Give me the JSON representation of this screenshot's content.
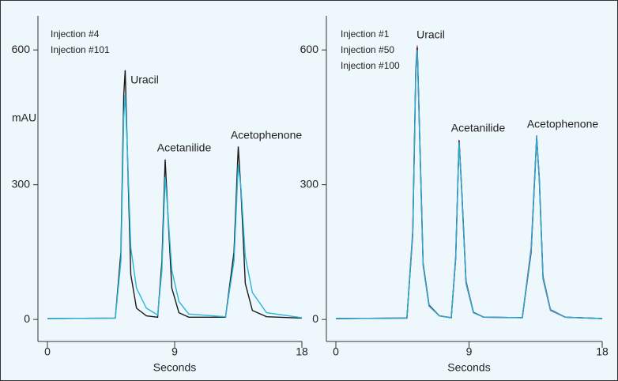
{
  "chart_data": [
    {
      "type": "line",
      "ylabel": "mAU",
      "xlabel": "Seconds",
      "x": [
        0,
        4.8,
        5.2,
        5.4,
        5.5,
        5.65,
        5.9,
        6.3,
        7,
        7.8,
        8.1,
        8.33,
        8.5,
        8.8,
        9.3,
        10,
        12.6,
        13.2,
        13.5,
        13.7,
        14,
        14.5,
        15.5,
        18
      ],
      "series": [
        {
          "name": "Injection #4",
          "color": "#1a1a1a",
          "values": [
            2,
            3,
            150,
            500,
            555,
            380,
            100,
            25,
            8,
            5,
            130,
            356,
            250,
            70,
            15,
            5,
            5,
            150,
            385,
            280,
            80,
            20,
            6,
            3
          ]
        },
        {
          "name": "Injection #101",
          "color": "#29b6d8",
          "values": [
            2,
            3,
            130,
            450,
            500,
            380,
            160,
            70,
            25,
            10,
            110,
            317,
            250,
            110,
            40,
            12,
            6,
            130,
            345,
            290,
            140,
            60,
            15,
            4
          ]
        }
      ],
      "annotations": [
        "Uracil",
        "Acetanilide",
        "Acetophenone"
      ],
      "xlim": [
        -0.67,
        18
      ],
      "xticks": [
        0,
        9,
        18
      ],
      "ylim": [
        -49,
        676
      ],
      "yticks": [
        0,
        300,
        600
      ]
    },
    {
      "type": "line",
      "xlabel": "Seconds",
      "x": [
        0,
        4.8,
        5.2,
        5.4,
        5.5,
        5.65,
        5.9,
        6.3,
        7,
        7.8,
        8.1,
        8.33,
        8.5,
        8.8,
        9.3,
        10,
        12.6,
        13.2,
        13.57,
        13.75,
        14,
        14.5,
        15.5,
        18
      ],
      "series": [
        {
          "name": "Injection #1",
          "color": "#e0388f",
          "values": [
            2,
            3,
            200,
            560,
            610,
            420,
            120,
            30,
            8,
            4,
            140,
            400,
            290,
            80,
            15,
            5,
            4,
            160,
            410,
            310,
            90,
            20,
            5,
            2
          ]
        },
        {
          "name": "Injection #50",
          "color": "#1a1a1a",
          "values": [
            2,
            3,
            190,
            550,
            605,
            425,
            125,
            32,
            8,
            4,
            135,
            398,
            295,
            85,
            16,
            5,
            4,
            150,
            405,
            315,
            95,
            22,
            5,
            2
          ]
        },
        {
          "name": "Injection #100",
          "color": "#29a8d0",
          "values": [
            2,
            3,
            195,
            555,
            600,
            420,
            122,
            30,
            8,
            4,
            138,
            395,
            292,
            82,
            15,
            5,
            4,
            155,
            408,
            312,
            92,
            21,
            5,
            2
          ]
        }
      ],
      "annotations": [
        "Uracil",
        "Acetanilide",
        "Acetophenone"
      ],
      "xlim": [
        -0.64,
        18
      ],
      "xticks": [
        0,
        9,
        18
      ],
      "ylim": [
        -49,
        676
      ],
      "yticks": [
        0,
        300,
        600
      ]
    }
  ]
}
